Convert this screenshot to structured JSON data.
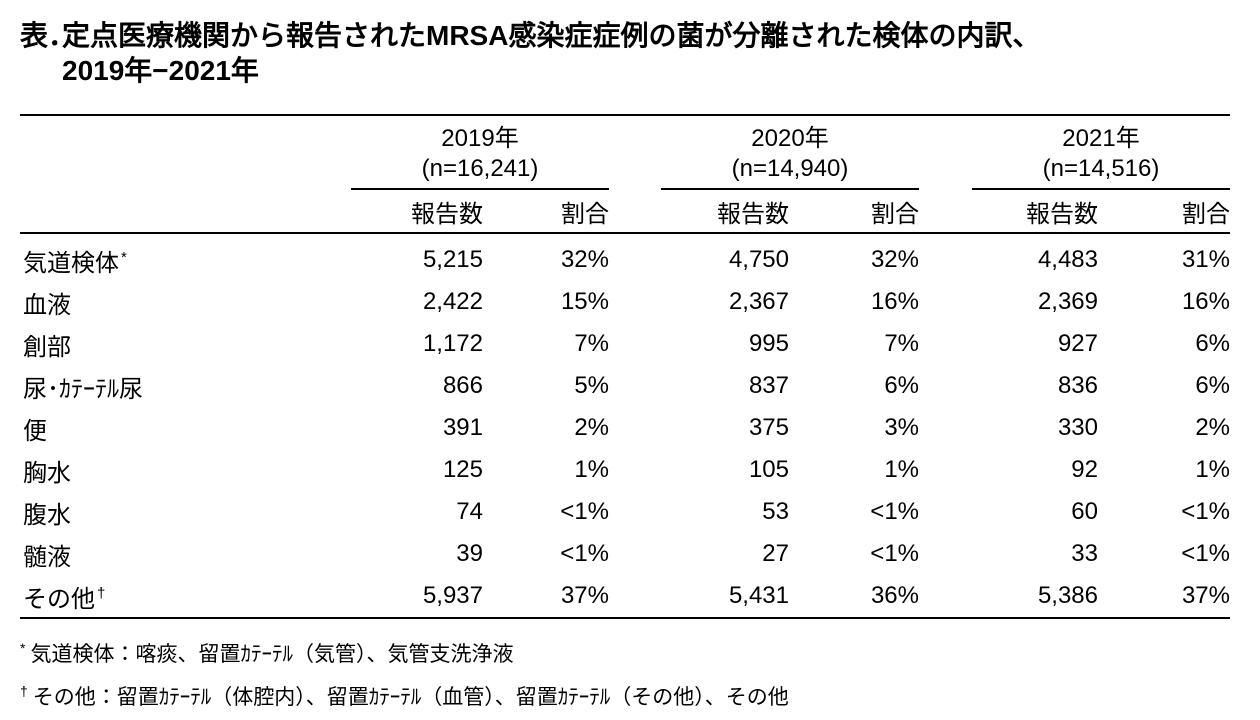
{
  "chart_data": {
    "type": "table",
    "title_prefix": "表．",
    "title_line1": "定点医療機関から報告されたMRSA感染症症例の菌が分離された検体の内訳、",
    "title_line2": "2019年−2021年",
    "groups": [
      {
        "year": "2019年",
        "n_label": "(n=16,241)"
      },
      {
        "year": "2020年",
        "n_label": "(n=14,940)"
      },
      {
        "year": "2021年",
        "n_label": "(n=14,516)"
      }
    ],
    "subheaders": {
      "count": "報告数",
      "share": "割合"
    },
    "rows": [
      {
        "label": "気道検体",
        "marker": "*",
        "cells": [
          "5,215",
          "32%",
          "4,750",
          "32%",
          "4,483",
          "31%"
        ]
      },
      {
        "label": "血液",
        "marker": "",
        "cells": [
          "2,422",
          "15%",
          "2,367",
          "16%",
          "2,369",
          "16%"
        ]
      },
      {
        "label": "創部",
        "marker": "",
        "cells": [
          "1,172",
          "7%",
          "995",
          "7%",
          "927",
          "6%"
        ]
      },
      {
        "label": "尿･ｶﾃｰﾃﾙ尿",
        "marker": "",
        "cells": [
          "866",
          "5%",
          "837",
          "6%",
          "836",
          "6%"
        ]
      },
      {
        "label": "便",
        "marker": "",
        "cells": [
          "391",
          "2%",
          "375",
          "3%",
          "330",
          "2%"
        ]
      },
      {
        "label": "胸水",
        "marker": "",
        "cells": [
          "125",
          "1%",
          "105",
          "1%",
          "92",
          "1%"
        ]
      },
      {
        "label": "腹水",
        "marker": "",
        "cells": [
          "74",
          "<1%",
          "53",
          "<1%",
          "60",
          "<1%"
        ]
      },
      {
        "label": "髄液",
        "marker": "",
        "cells": [
          "39",
          "<1%",
          "27",
          "<1%",
          "33",
          "<1%"
        ]
      },
      {
        "label": "その他",
        "marker": "†",
        "cells": [
          "5,937",
          "37%",
          "5,431",
          "36%",
          "5,386",
          "37%"
        ]
      }
    ],
    "footnotes": [
      {
        "marker": "*",
        "text": "気道検体：喀痰、留置ｶﾃｰﾃﾙ（気管）、気管支洗浄液"
      },
      {
        "marker": "†",
        "text": "その他：留置ｶﾃｰﾃﾙ（体腔内）、留置ｶﾃｰﾃﾙ（血管）、留置ｶﾃｰﾃﾙ（その他）、その他"
      }
    ]
  }
}
